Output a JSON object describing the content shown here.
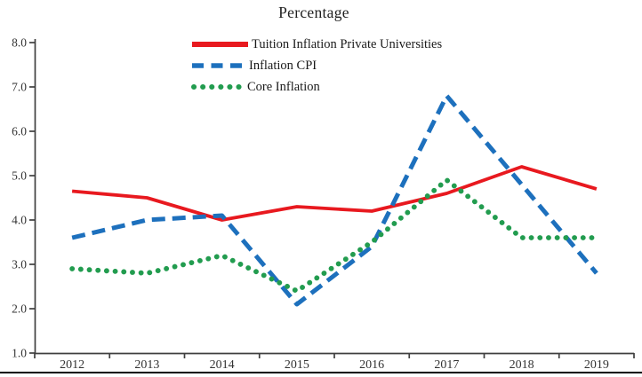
{
  "chart_data": {
    "type": "line",
    "title": "Percentage",
    "categories": [
      "2012",
      "2013",
      "2014",
      "2015",
      "2016",
      "2017",
      "2018",
      "2019"
    ],
    "series": [
      {
        "name": "Tuition Inflation Private Universities",
        "style": "solid",
        "color": "#e8191f",
        "values": [
          4.65,
          4.5,
          4.0,
          4.3,
          4.2,
          4.6,
          5.2,
          4.7
        ]
      },
      {
        "name": "Inflation CPI",
        "style": "dashed",
        "color": "#1d70bd",
        "values": [
          3.6,
          4.0,
          4.1,
          2.1,
          3.4,
          6.8,
          4.8,
          2.8
        ]
      },
      {
        "name": "Core Inflation",
        "style": "dotted",
        "color": "#229c4f",
        "values": [
          2.9,
          2.8,
          3.2,
          2.4,
          3.5,
          4.9,
          3.6,
          3.6
        ]
      }
    ],
    "xlabel": "",
    "ylabel": "",
    "ylim": [
      1.0,
      8.0
    ],
    "ytick_step": 1.0,
    "ytick_labels": [
      "1.0",
      "2.0",
      "3.0",
      "4.0",
      "5.0",
      "6.0",
      "7.0",
      "8.0"
    ],
    "grid": false,
    "legend_position": "top-inside-left"
  }
}
